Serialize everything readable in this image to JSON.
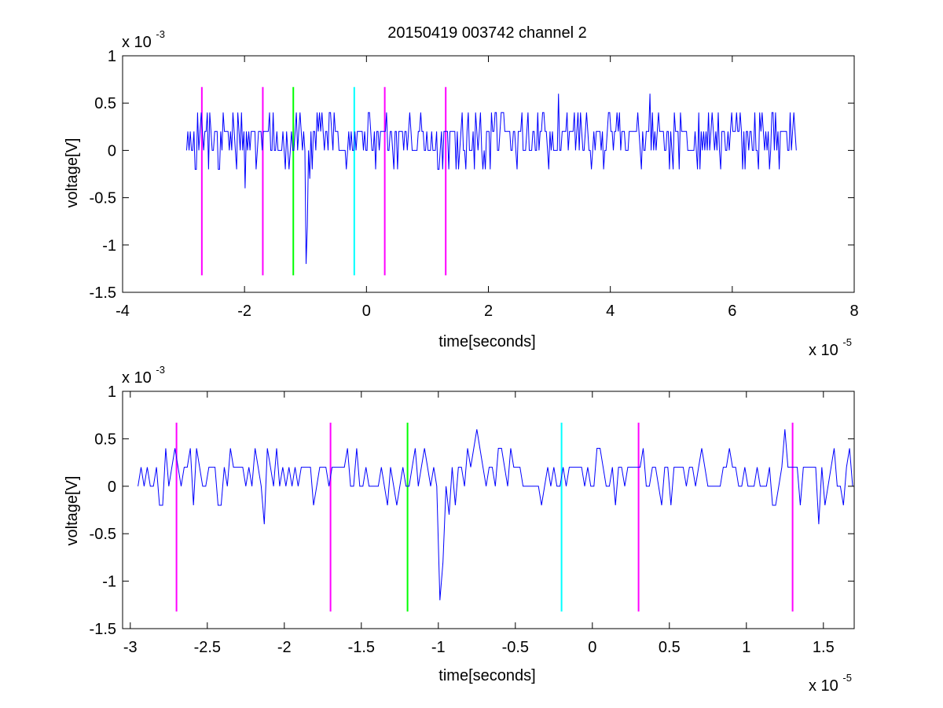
{
  "figure": {
    "title": "20150419 003742 channel 2"
  },
  "chart_data": [
    {
      "type": "line",
      "title": "20150419 003742 channel 2",
      "xlabel": "time[seconds]",
      "ylabel": "voltage[V]",
      "x_multiplier": "x 10",
      "x_exponent": "-5",
      "y_multiplier": "x 10",
      "y_exponent": "-3",
      "xlim": [
        -4,
        8
      ],
      "ylim": [
        -1.5,
        1
      ],
      "xticks": [
        -4,
        -2,
        0,
        2,
        4,
        6,
        8
      ],
      "xtick_labels": [
        "-4",
        "-2",
        "0",
        "2",
        "4",
        "6",
        "8"
      ],
      "yticks": [
        -1.5,
        -1,
        -0.5,
        0,
        0.5,
        1
      ],
      "ytick_labels": [
        "-1.5",
        "-1",
        "-0.5",
        "0",
        "0.5",
        "1"
      ],
      "grid": false,
      "signal": {
        "color": "#0000ff",
        "x_range": [
          -2.95,
          7.05
        ],
        "baseline": [
          0,
          0.2
        ],
        "x": [
          -2.8,
          -2.0,
          -1.0,
          -0.97,
          -0.93,
          3.15,
          4.65
        ],
        "y": [
          -0.2,
          -0.4,
          -1.2,
          -0.8,
          -0.3,
          0.6,
          0.6
        ]
      },
      "markers": [
        {
          "x": -2.7,
          "color": "#ff00ff"
        },
        {
          "x": -1.7,
          "color": "#ff00ff"
        },
        {
          "x": -1.2,
          "color": "#00ff00"
        },
        {
          "x": -0.2,
          "color": "#00ffff"
        },
        {
          "x": 0.3,
          "color": "#ff00ff"
        },
        {
          "x": 1.3,
          "color": "#ff00ff"
        }
      ],
      "marker_range": [
        -1.32,
        0.67
      ]
    },
    {
      "type": "line",
      "xlabel": "time[seconds]",
      "ylabel": "voltage[V]",
      "x_multiplier": "x 10",
      "x_exponent": "-5",
      "y_multiplier": "x 10",
      "y_exponent": "-3",
      "xlim": [
        -3.05,
        1.7
      ],
      "ylim": [
        -1.5,
        1
      ],
      "xticks": [
        -3,
        -2.5,
        -2,
        -1.5,
        -1,
        -0.5,
        0,
        0.5,
        1,
        1.5
      ],
      "xtick_labels": [
        "-3",
        "-2.5",
        "-2",
        "-1.5",
        "-1",
        "-0.5",
        "0",
        "0.5",
        "1",
        "1.5"
      ],
      "yticks": [
        -1.5,
        -1,
        -0.5,
        0,
        0.5,
        1
      ],
      "ytick_labels": [
        "-1.5",
        "-1",
        "-0.5",
        "0",
        "0.5",
        "1"
      ],
      "grid": false,
      "signal": {
        "color": "#0000ff",
        "x_range": [
          -2.95,
          1.7
        ],
        "baseline": [
          0,
          0.2
        ],
        "x": [
          -2.8,
          -2.13,
          -1.0,
          -0.97,
          -0.93,
          -0.75,
          1.25,
          1.47
        ],
        "y": [
          -0.2,
          -0.4,
          -1.2,
          -0.8,
          -0.3,
          0.6,
          0.6,
          -0.4
        ]
      },
      "markers": [
        {
          "x": -2.7,
          "color": "#ff00ff"
        },
        {
          "x": -1.7,
          "color": "#ff00ff"
        },
        {
          "x": -1.2,
          "color": "#00ff00"
        },
        {
          "x": -0.2,
          "color": "#00ffff"
        },
        {
          "x": 0.3,
          "color": "#ff00ff"
        },
        {
          "x": 1.3,
          "color": "#ff00ff"
        }
      ],
      "marker_range": [
        -1.32,
        0.67
      ]
    }
  ]
}
